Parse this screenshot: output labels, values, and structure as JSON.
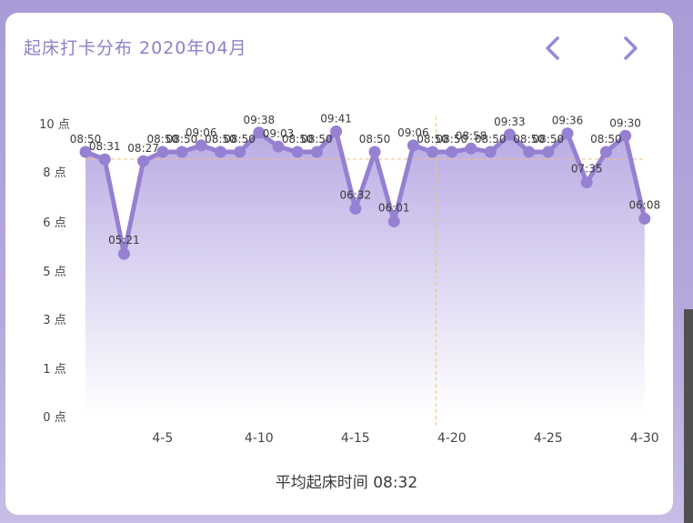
{
  "header": {
    "title": "起床打卡分布 2020年04月",
    "prev_icon": "chevron-left-icon",
    "next_icon": "chevron-right-icon"
  },
  "footer": {
    "average_text": "平均起床时间 08:32"
  },
  "colors": {
    "accent": "#9a88d4",
    "line": "#9580d2",
    "fill_top": "#b5a6e2",
    "fill_bottom": "#ffffff",
    "average_line": "#f0c080",
    "card": "#ffffff"
  },
  "chart_data": {
    "type": "area",
    "y_ticks": [
      {
        "value": 10,
        "label": "10 点"
      },
      {
        "value": 8,
        "label": "8 点"
      },
      {
        "value": 6,
        "label": "6 点"
      },
      {
        "value": 5,
        "label": "5 点"
      },
      {
        "value": 3,
        "label": "3 点"
      },
      {
        "value": 1,
        "label": "1 点"
      },
      {
        "value": 0,
        "label": "0 点"
      }
    ],
    "x_ticks": [
      {
        "day": 5,
        "label": "4-5"
      },
      {
        "day": 10,
        "label": "4-10"
      },
      {
        "day": 15,
        "label": "4-15"
      },
      {
        "day": 20,
        "label": "4-20"
      },
      {
        "day": 25,
        "label": "4-25"
      },
      {
        "day": 30,
        "label": "4-30"
      }
    ],
    "x": [
      1,
      2,
      3,
      4,
      5,
      6,
      7,
      8,
      9,
      10,
      11,
      12,
      13,
      14,
      15,
      16,
      17,
      18,
      19,
      20,
      21,
      22,
      23,
      24,
      25,
      26,
      27,
      28,
      29,
      30
    ],
    "values": [
      8.83,
      8.52,
      5.35,
      8.45,
      8.83,
      8.83,
      9.1,
      8.83,
      8.83,
      9.63,
      9.05,
      8.83,
      8.83,
      9.68,
      6.53,
      8.83,
      6.02,
      9.1,
      8.83,
      8.83,
      8.97,
      8.83,
      9.55,
      8.83,
      8.83,
      9.6,
      7.58,
      8.83,
      9.5,
      6.13
    ],
    "labels": [
      "08:50",
      "08:31",
      "05:21",
      "08:27",
      "08:50",
      "08:50",
      "09:06",
      "08:50",
      "08:50",
      "09:38",
      "09:03",
      "08:50",
      "08:50",
      "09:41",
      "06:32",
      "08:50",
      "06:01",
      "09:06",
      "08:50",
      "08:50",
      "08:58",
      "08:50",
      "09:33",
      "08:50",
      "08:50",
      "09:36",
      "07:35",
      "08:50",
      "09:30",
      "06:08"
    ],
    "average_value": 8.53,
    "average_label": "08:32",
    "highlight_day": 19
  }
}
